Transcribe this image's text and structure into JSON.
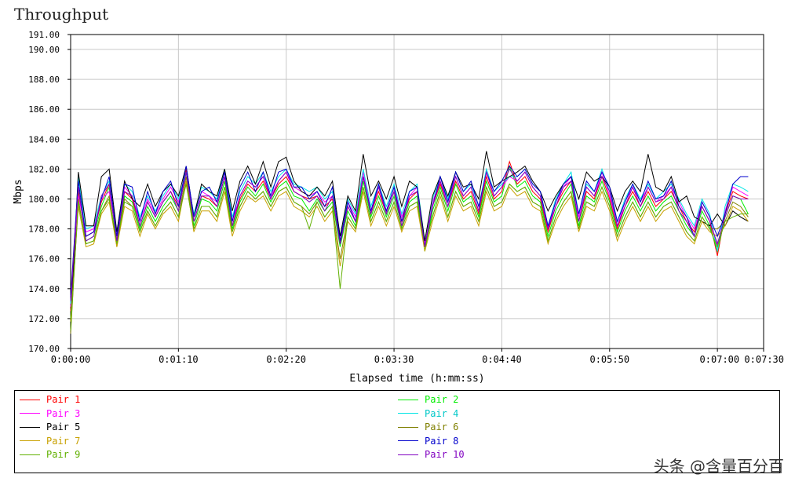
{
  "title": "Throughput",
  "watermark": "头条 @含量百分百",
  "chart_data": {
    "type": "line",
    "title": "Throughput",
    "xlabel": "Elapsed time (h:mm:ss)",
    "ylabel": "Mbps",
    "ylim": [
      170,
      191
    ],
    "xlim": [
      0,
      450
    ],
    "yticks": [
      170,
      172,
      174,
      176,
      178,
      180,
      182,
      184,
      186,
      188,
      190,
      191
    ],
    "ytick_labels": [
      "170.00",
      "172.00",
      "174.00",
      "176.00",
      "178.00",
      "180.00",
      "182.00",
      "184.00",
      "186.00",
      "188.00",
      "190.00",
      "191.00"
    ],
    "xticks": [
      0,
      70,
      140,
      210,
      280,
      350,
      420,
      450
    ],
    "xtick_labels": [
      "0:00:00",
      "0:01:10",
      "0:02:20",
      "0:03:30",
      "0:04:40",
      "0:05:50",
      "0:07:00",
      "0:07:30"
    ],
    "grid": true,
    "legend_position": "bottom",
    "x": [
      0,
      5,
      10,
      15,
      20,
      25,
      30,
      35,
      40,
      45,
      50,
      55,
      60,
      65,
      70,
      75,
      80,
      85,
      90,
      95,
      100,
      105,
      110,
      115,
      120,
      125,
      130,
      135,
      140,
      145,
      150,
      155,
      160,
      165,
      170,
      175,
      180,
      185,
      190,
      195,
      200,
      205,
      210,
      215,
      220,
      225,
      230,
      235,
      240,
      245,
      250,
      255,
      260,
      265,
      270,
      275,
      280,
      285,
      290,
      295,
      300,
      305,
      310,
      315,
      320,
      325,
      330,
      335,
      340,
      345,
      350,
      355,
      360,
      365,
      370,
      375,
      380,
      385,
      390,
      395,
      400,
      405,
      410,
      415,
      420,
      425,
      430,
      435,
      440
    ],
    "series": [
      {
        "name": "Pair 1",
        "color": "#ff0000",
        "values": [
          172.5,
          180.5,
          177.5,
          177.8,
          179.8,
          181.0,
          177.2,
          180.5,
          180.0,
          178.2,
          179.8,
          178.8,
          179.8,
          180.5,
          179.5,
          182.0,
          178.5,
          180.2,
          180.0,
          179.5,
          181.5,
          178.2,
          180.0,
          181.0,
          180.5,
          181.2,
          180.0,
          181.0,
          181.5,
          180.5,
          180.2,
          180.0,
          180.2,
          179.5,
          180.0,
          177.0,
          179.5,
          178.5,
          181.5,
          179.0,
          180.5,
          179.0,
          180.5,
          178.5,
          180.0,
          180.5,
          176.8,
          179.5,
          181.0,
          179.5,
          181.2,
          180.0,
          180.5,
          179.0,
          181.5,
          180.0,
          180.5,
          182.5,
          181.0,
          181.5,
          180.5,
          180.0,
          177.8,
          179.5,
          180.5,
          181.2,
          178.5,
          180.5,
          180.0,
          181.5,
          180.0,
          178.0,
          179.5,
          180.5,
          179.5,
          180.5,
          179.5,
          180.0,
          180.5,
          179.5,
          178.5,
          177.8,
          179.5,
          178.5,
          176.2,
          179.0,
          180.5,
          180.2,
          180.0
        ]
      },
      {
        "name": "Pair 2",
        "color": "#00ee00",
        "values": [
          172.0,
          180.8,
          177.2,
          177.5,
          179.5,
          180.8,
          177.0,
          180.2,
          179.8,
          178.0,
          179.5,
          178.5,
          179.5,
          180.2,
          179.2,
          181.8,
          178.2,
          180.0,
          179.8,
          179.2,
          181.2,
          178.0,
          179.8,
          180.8,
          180.2,
          181.0,
          179.8,
          180.8,
          181.2,
          180.2,
          180.0,
          179.2,
          180.0,
          179.2,
          179.8,
          176.8,
          179.2,
          178.2,
          181.2,
          178.8,
          180.2,
          178.8,
          180.2,
          178.2,
          179.8,
          180.2,
          176.5,
          179.2,
          180.8,
          179.2,
          181.0,
          179.8,
          180.2,
          178.8,
          181.2,
          179.8,
          180.2,
          182.2,
          180.8,
          181.2,
          180.2,
          179.8,
          177.5,
          179.2,
          180.2,
          181.0,
          178.2,
          180.2,
          179.8,
          181.2,
          179.8,
          177.8,
          179.2,
          180.2,
          179.2,
          180.2,
          179.2,
          179.8,
          180.2,
          179.2,
          178.2,
          177.5,
          179.2,
          178.2,
          176.5,
          178.8,
          180.2,
          180.0,
          179.0
        ]
      },
      {
        "name": "Pair 3",
        "color": "#ff00ff",
        "values": [
          172.8,
          180.2,
          177.8,
          178.0,
          180.0,
          180.5,
          177.5,
          180.8,
          180.2,
          178.5,
          180.0,
          179.0,
          180.0,
          180.8,
          179.8,
          181.5,
          178.8,
          180.5,
          180.2,
          179.8,
          181.8,
          178.5,
          180.2,
          181.2,
          180.8,
          181.5,
          180.2,
          181.2,
          181.8,
          180.8,
          180.5,
          180.2,
          180.5,
          179.8,
          180.2,
          177.2,
          179.8,
          178.8,
          181.8,
          179.2,
          180.8,
          179.2,
          180.8,
          178.8,
          180.2,
          180.8,
          177.0,
          179.8,
          181.2,
          179.8,
          181.5,
          180.2,
          180.8,
          179.2,
          181.8,
          180.2,
          180.8,
          181.5,
          181.2,
          181.8,
          180.8,
          180.2,
          178.0,
          179.8,
          180.8,
          181.5,
          178.8,
          180.8,
          180.2,
          181.8,
          180.2,
          178.2,
          179.8,
          180.8,
          179.8,
          180.8,
          179.8,
          180.2,
          180.8,
          179.8,
          178.8,
          178.0,
          179.8,
          178.8,
          176.8,
          179.2,
          180.8,
          180.5,
          180.2
        ]
      },
      {
        "name": "Pair 4",
        "color": "#00e5e5",
        "values": [
          173.0,
          181.5,
          178.0,
          178.2,
          180.2,
          181.2,
          177.8,
          181.0,
          180.5,
          178.8,
          180.2,
          179.2,
          180.2,
          181.0,
          180.0,
          181.8,
          179.0,
          180.8,
          180.5,
          180.0,
          182.0,
          178.8,
          180.5,
          181.5,
          181.0,
          181.8,
          180.5,
          181.5,
          182.0,
          181.0,
          180.8,
          180.5,
          180.8,
          180.0,
          180.5,
          177.5,
          180.0,
          179.0,
          182.0,
          179.5,
          181.0,
          179.5,
          181.0,
          179.0,
          180.5,
          181.0,
          177.2,
          180.0,
          181.5,
          180.0,
          181.8,
          180.5,
          181.0,
          179.5,
          182.0,
          180.5,
          181.0,
          181.5,
          181.5,
          182.0,
          181.0,
          180.5,
          178.2,
          180.0,
          181.0,
          181.8,
          179.0,
          181.0,
          180.5,
          182.0,
          180.5,
          178.5,
          180.0,
          181.0,
          180.0,
          181.0,
          180.0,
          180.5,
          181.0,
          180.0,
          179.0,
          178.2,
          180.0,
          179.0,
          176.5,
          179.5,
          181.0,
          180.8,
          180.5
        ]
      },
      {
        "name": "Pair 5",
        "color": "#000000",
        "values": [
          171.5,
          181.8,
          178.2,
          178.2,
          181.5,
          182.0,
          177.8,
          181.2,
          180.0,
          179.5,
          181.0,
          179.5,
          180.5,
          181.0,
          180.2,
          182.2,
          178.8,
          181.0,
          180.5,
          180.2,
          182.0,
          179.2,
          181.2,
          182.2,
          181.0,
          182.5,
          180.8,
          182.5,
          182.8,
          181.2,
          180.5,
          180.2,
          180.8,
          180.2,
          181.2,
          177.5,
          180.2,
          179.2,
          183.0,
          180.2,
          181.2,
          180.0,
          181.5,
          179.5,
          181.2,
          180.8,
          177.2,
          180.2,
          181.5,
          180.2,
          181.8,
          180.8,
          181.0,
          180.0,
          183.2,
          180.8,
          181.2,
          181.5,
          181.8,
          182.2,
          181.2,
          180.5,
          179.2,
          180.2,
          181.0,
          181.5,
          180.0,
          181.8,
          181.2,
          181.5,
          180.8,
          179.2,
          180.5,
          181.2,
          180.5,
          183.0,
          180.8,
          180.5,
          181.5,
          179.8,
          180.2,
          178.8,
          178.5,
          178.2,
          179.0,
          178.2,
          179.2,
          178.8,
          178.5
        ]
      },
      {
        "name": "Pair 6",
        "color": "#808000",
        "values": [
          171.0,
          180.0,
          177.0,
          177.2,
          179.2,
          180.2,
          176.8,
          180.0,
          179.5,
          177.8,
          179.2,
          178.2,
          179.2,
          179.8,
          178.8,
          181.5,
          178.0,
          179.5,
          179.5,
          178.8,
          180.8,
          177.8,
          179.5,
          180.5,
          180.0,
          180.5,
          179.5,
          180.5,
          180.8,
          179.8,
          179.5,
          179.0,
          179.8,
          178.8,
          179.5,
          176.0,
          178.8,
          178.0,
          180.8,
          178.5,
          179.8,
          178.5,
          179.8,
          178.0,
          179.5,
          179.8,
          176.8,
          178.8,
          180.5,
          178.8,
          180.5,
          179.5,
          179.8,
          178.5,
          180.8,
          179.5,
          179.8,
          181.0,
          180.5,
          180.8,
          179.8,
          179.5,
          177.2,
          178.8,
          179.8,
          180.5,
          178.0,
          179.8,
          179.5,
          180.8,
          179.5,
          177.5,
          178.8,
          179.8,
          178.8,
          179.8,
          178.8,
          179.5,
          179.8,
          178.8,
          177.8,
          177.2,
          178.8,
          178.0,
          178.0,
          178.5,
          179.8,
          179.5,
          178.8
        ]
      },
      {
        "name": "Pair 7",
        "color": "#c8a000",
        "values": [
          171.8,
          179.5,
          176.8,
          177.0,
          179.0,
          179.8,
          176.8,
          179.5,
          179.2,
          177.5,
          179.0,
          178.0,
          179.0,
          179.5,
          178.5,
          181.2,
          177.8,
          179.2,
          179.2,
          178.5,
          180.5,
          177.5,
          179.2,
          180.2,
          179.8,
          180.2,
          179.2,
          180.2,
          180.5,
          179.5,
          179.2,
          178.8,
          179.5,
          178.5,
          179.2,
          175.5,
          178.5,
          177.8,
          180.5,
          178.2,
          179.5,
          178.2,
          179.5,
          177.8,
          179.2,
          179.5,
          176.5,
          178.5,
          180.2,
          178.5,
          180.2,
          179.2,
          179.5,
          178.2,
          180.5,
          179.2,
          179.5,
          180.8,
          180.2,
          180.5,
          179.5,
          179.2,
          177.0,
          178.5,
          179.5,
          180.2,
          177.8,
          179.5,
          179.2,
          180.5,
          179.2,
          177.2,
          178.5,
          179.5,
          178.5,
          179.5,
          178.5,
          179.2,
          179.5,
          178.5,
          177.5,
          177.0,
          178.5,
          177.8,
          177.5,
          178.2,
          179.5,
          179.2,
          178.5
        ]
      },
      {
        "name": "Pair 8",
        "color": "#0000cc",
        "values": [
          173.5,
          181.2,
          177.5,
          177.8,
          180.0,
          181.5,
          177.5,
          181.0,
          180.8,
          178.5,
          180.5,
          179.0,
          180.5,
          181.2,
          179.5,
          182.2,
          178.8,
          180.5,
          180.8,
          179.8,
          181.8,
          178.5,
          180.8,
          181.8,
          180.5,
          181.8,
          180.2,
          181.8,
          182.0,
          180.8,
          180.8,
          180.0,
          180.5,
          179.5,
          180.8,
          177.2,
          179.8,
          178.5,
          181.5,
          179.2,
          181.0,
          179.2,
          180.8,
          178.5,
          180.5,
          180.8,
          176.8,
          179.5,
          181.5,
          179.8,
          181.8,
          180.5,
          181.2,
          179.5,
          181.8,
          180.5,
          181.2,
          182.2,
          181.5,
          182.0,
          181.0,
          180.5,
          178.2,
          179.8,
          181.0,
          181.5,
          179.0,
          181.2,
          180.5,
          181.8,
          180.8,
          178.5,
          179.8,
          181.0,
          179.8,
          181.2,
          180.0,
          180.2,
          181.2,
          179.5,
          178.8,
          177.5,
          179.8,
          178.8,
          177.5,
          179.0,
          181.0,
          181.5,
          181.5
        ]
      },
      {
        "name": "Pair 9",
        "color": "#60b000",
        "values": [
          171.2,
          179.8,
          177.0,
          177.2,
          179.2,
          180.0,
          177.0,
          179.8,
          179.5,
          177.8,
          179.2,
          178.2,
          179.2,
          179.8,
          178.8,
          181.0,
          178.0,
          179.5,
          179.5,
          178.8,
          180.8,
          177.8,
          179.5,
          180.5,
          180.0,
          180.5,
          179.5,
          180.5,
          180.8,
          179.8,
          179.5,
          178.0,
          179.8,
          178.8,
          179.5,
          174.0,
          178.8,
          178.0,
          180.8,
          178.5,
          179.8,
          178.5,
          179.8,
          178.0,
          179.5,
          179.8,
          176.8,
          178.8,
          180.5,
          178.8,
          180.5,
          179.5,
          179.8,
          178.5,
          180.8,
          179.5,
          179.8,
          181.0,
          180.5,
          180.8,
          179.8,
          179.5,
          177.2,
          178.8,
          179.8,
          180.5,
          178.0,
          179.8,
          179.5,
          180.8,
          179.5,
          177.5,
          178.8,
          179.8,
          178.8,
          179.8,
          178.8,
          179.5,
          179.8,
          178.8,
          177.8,
          177.2,
          178.8,
          178.0,
          176.8,
          178.5,
          178.8,
          179.0,
          179.0
        ]
      },
      {
        "name": "Pair 10",
        "color": "#8000c0",
        "values": [
          173.2,
          180.8,
          177.2,
          177.5,
          180.2,
          181.0,
          177.2,
          180.5,
          180.2,
          178.2,
          179.8,
          178.8,
          179.8,
          180.5,
          179.2,
          181.8,
          178.5,
          180.2,
          180.2,
          179.5,
          181.5,
          178.2,
          180.2,
          181.2,
          180.8,
          181.5,
          180.0,
          181.2,
          181.8,
          180.5,
          180.2,
          179.8,
          180.2,
          179.2,
          180.2,
          177.0,
          179.5,
          178.5,
          181.5,
          179.0,
          180.8,
          179.0,
          180.5,
          178.2,
          180.2,
          180.5,
          176.8,
          179.5,
          181.2,
          179.5,
          181.5,
          180.2,
          180.8,
          179.2,
          181.8,
          180.2,
          180.8,
          182.0,
          181.2,
          181.8,
          180.8,
          180.2,
          178.0,
          179.5,
          180.8,
          181.2,
          178.5,
          180.8,
          180.2,
          181.5,
          180.5,
          178.2,
          179.5,
          180.8,
          179.5,
          180.8,
          179.8,
          180.0,
          180.8,
          179.2,
          178.5,
          177.5,
          179.5,
          178.5,
          177.0,
          178.8,
          180.2,
          180.0,
          180.0
        ]
      }
    ]
  },
  "legend_label": "Pair"
}
